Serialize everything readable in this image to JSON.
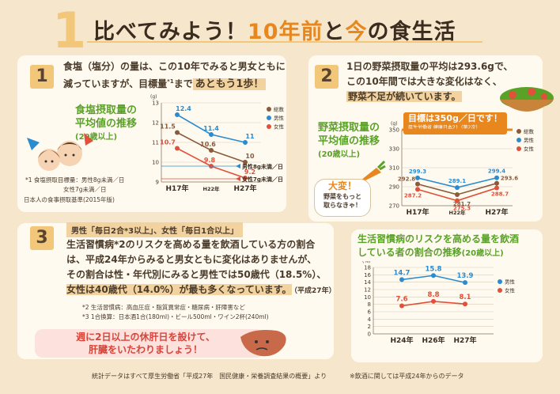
{
  "header": {
    "number": "1",
    "title_a": "比べてみよう！",
    "title_b": "10年前",
    "title_c": "と",
    "title_d": "今",
    "title_e": "の食生活"
  },
  "section1": {
    "number": "1",
    "line1": "食塩（塩分）の量は、この10年でみると男女ともに",
    "line2a": "減っていますが、目標量",
    "line2sup": "*1",
    "line2b": "まで",
    "line2c": "あともう1歩！",
    "chart_title1": "食塩摂取量の",
    "chart_title2": "平均値の推移",
    "chart_sub": "(20歳以上)",
    "footnote1": "*1  食塩摂取目標量：男性8g未満／日",
    "footnote2": "女性7g未満／日",
    "footnote3": "日本人の食事摂取基準(2015年版)",
    "target_male": "男性8g未満／日",
    "target_female": "女性7g未満／日"
  },
  "section2": {
    "number": "2",
    "line1": "1日の野菜摂取量の平均は293.6gで、",
    "line2": "この10年間では大きな変化はなく、",
    "line3": "野菜不足が続いています。",
    "chart_title1": "野菜摂取量の",
    "chart_title2": "平均値の推移",
    "chart_sub": "(20歳以上)",
    "goal_text": "目標は350g／日です！",
    "goal_sub": "厚生労働省  健康日本21（第2次）",
    "bubble1": "大変！",
    "bubble2": "野菜をもっと",
    "bubble3": "取らなきゃ！"
  },
  "section3": {
    "number": "3",
    "tag": "男性「毎日2合*3以上」、女性「毎日1合以上」",
    "line1": "生活習慣病*2のリスクを高める量を飲酒している方の割合",
    "line2": "は、平成24年からみると男女ともに変化はありませんが、",
    "line3": "その割合は性・年代別にみると男性では50歳代（18.5%）、",
    "line4": "女性は40歳代（14.0%）が最も多くなっています。",
    "line4b": "（平成27年）",
    "note2": "*2  生活習慣病：高血圧症・脂質異常症・糖尿病・肝障害など",
    "note3": "*3  1合換算：日本酒1合(180ml)・ビール500ml・ワイン2杯(240ml)",
    "msg1": "週に2日以上の休肝日を設けて、",
    "msg2": "肝臓をいたわりましょう！"
  },
  "section4": {
    "title1": "生活習慣病のリスクを高める量を飲酒",
    "title2": "している者の割合の推移",
    "title_sub": "(20歳以上)"
  },
  "footer": {
    "left": "統計データはすべて厚生労働省「平成27年　国民健康・栄養調査結果の概要」より",
    "right": "※飲酒に関しては平成24年からのデータ"
  },
  "colors": {
    "total": "#8a5a3a",
    "male": "#2a8ccf",
    "female": "#e0503a",
    "accent": "#e8871e",
    "green": "#5aa128"
  },
  "chart_data": [
    {
      "type": "line",
      "title": "食塩摂取量の平均値の推移",
      "categories": [
        "H17年",
        "H22年",
        "H27年"
      ],
      "ylabel": "(g)",
      "ylim": [
        9,
        13
      ],
      "yticks": [
        "13",
        "12",
        "11",
        "10",
        "9"
      ],
      "series": [
        {
          "name": "総数",
          "values": [
            11.5,
            10.6,
            10.0
          ]
        },
        {
          "name": "男性",
          "values": [
            12.4,
            11.4,
            11.0
          ]
        },
        {
          "name": "女性",
          "values": [
            10.7,
            9.8,
            9.2
          ]
        }
      ]
    },
    {
      "type": "line",
      "title": "野菜摂取量の平均値の推移",
      "categories": [
        "H17年",
        "H22年",
        "H27年"
      ],
      "ylabel": "(g)",
      "ylim": [
        270,
        350
      ],
      "yticks": [
        "350",
        "330",
        "310",
        "290",
        "270"
      ],
      "series": [
        {
          "name": "総数",
          "values": [
            292.8,
            281.7,
            293.6
          ]
        },
        {
          "name": "男性",
          "values": [
            299.3,
            289.1,
            299.4
          ]
        },
        {
          "name": "女性",
          "values": [
            287.2,
            275.3,
            288.7
          ]
        }
      ]
    },
    {
      "type": "line",
      "title": "生活習慣病のリスクを高める量を飲酒している者の割合の推移",
      "categories": [
        "H24年",
        "H26年",
        "H27年"
      ],
      "ylabel": "(%)",
      "ylim": [
        0,
        18
      ],
      "yticks": [
        "18",
        "16",
        "14",
        "12",
        "10",
        "8",
        "6",
        "4",
        "2",
        "0"
      ],
      "series": [
        {
          "name": "男性",
          "values": [
            14.7,
            15.8,
            13.9
          ]
        },
        {
          "name": "女性",
          "values": [
            7.6,
            8.8,
            8.1
          ]
        }
      ]
    }
  ]
}
